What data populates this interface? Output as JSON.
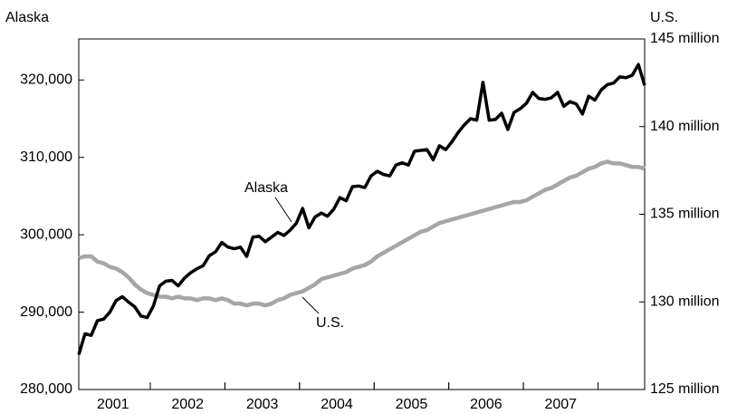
{
  "chart_data": {
    "type": "line",
    "y_label": "Alaska",
    "y2_label": "U.S.",
    "categories": [
      "2001",
      null,
      null,
      null,
      null,
      null,
      null,
      null,
      null,
      null,
      null,
      null,
      "2002",
      null,
      null,
      null,
      null,
      null,
      null,
      null,
      null,
      null,
      null,
      null,
      "2003",
      null,
      null,
      null,
      null,
      null,
      null,
      null,
      null,
      null,
      null,
      null,
      "2004",
      null,
      null,
      null,
      null,
      null,
      null,
      null,
      null,
      null,
      null,
      null,
      "2005",
      null,
      null,
      null,
      null,
      null,
      null,
      null,
      null,
      null,
      null,
      null,
      "2006",
      null,
      null,
      null,
      null,
      null,
      null,
      null,
      null,
      null,
      null,
      null,
      "2007",
      null,
      null,
      null,
      null,
      null,
      null,
      null,
      null,
      null,
      null,
      null,
      null,
      null,
      null,
      null,
      null,
      null,
      null,
      null
    ],
    "series": [
      {
        "name": "Alaska",
        "color": "#000000",
        "values": [
          284500,
          287200,
          287000,
          288900,
          289100,
          290000,
          291500,
          292000,
          291300,
          290700,
          289500,
          289300,
          290800,
          293400,
          294000,
          294100,
          293400,
          294400,
          295100,
          295600,
          296000,
          297300,
          297800,
          299000,
          298400,
          298200,
          298400,
          297200,
          299700,
          299800,
          299100,
          299700,
          300300,
          299900,
          300600,
          301500,
          303400,
          300900,
          302300,
          302800,
          302400,
          303300,
          304800,
          304400,
          306200,
          306300,
          306100,
          307600,
          308200,
          307800,
          307600,
          309000,
          309300,
          309000,
          310800,
          310900,
          311000,
          309700,
          311500,
          311000,
          312000,
          313200,
          314200,
          315000,
          314800,
          319700,
          314800,
          314900,
          315700,
          313600,
          315800,
          316300,
          317000,
          318400,
          317600,
          317500,
          317700,
          318400,
          316600,
          317200,
          316900,
          315600,
          317900,
          317400,
          318700,
          319400,
          319600,
          320400,
          320300,
          320600,
          322000,
          319300
        ]
      },
      {
        "name": "U.S.",
        "color": "#a6a6a6",
        "axis": "y2",
        "values": [
          132.5,
          132.6,
          132.6,
          132.3,
          132.2,
          132.0,
          131.9,
          131.7,
          131.4,
          131.0,
          130.7,
          130.5,
          130.4,
          130.3,
          130.3,
          130.2,
          130.3,
          130.2,
          130.2,
          130.1,
          130.2,
          130.2,
          130.1,
          130.2,
          130.1,
          129.9,
          129.9,
          129.8,
          129.9,
          129.9,
          129.8,
          129.9,
          130.1,
          130.2,
          130.4,
          130.5,
          130.6,
          130.8,
          131.0,
          131.3,
          131.4,
          131.5,
          131.6,
          131.7,
          131.9,
          132.0,
          132.1,
          132.3,
          132.6,
          132.8,
          133.0,
          133.2,
          133.4,
          133.6,
          133.8,
          134.0,
          134.1,
          134.3,
          134.5,
          134.6,
          134.7,
          134.8,
          134.9,
          135.0,
          135.1,
          135.2,
          135.3,
          135.4,
          135.5,
          135.6,
          135.7,
          135.7,
          135.8,
          136.0,
          136.2,
          136.4,
          136.5,
          136.7,
          136.9,
          137.1,
          137.2,
          137.4,
          137.6,
          137.7,
          137.9,
          138.0,
          137.9,
          137.9,
          137.8,
          137.7,
          137.7,
          137.6
        ]
      }
    ],
    "ylim": [
      280000,
      325300
    ],
    "yticks": [
      {
        "value": 280000,
        "label": "280,000"
      },
      {
        "value": 290000,
        "label": "290,000"
      },
      {
        "value": 300000,
        "label": "300,000"
      },
      {
        "value": 310000,
        "label": "310,000"
      },
      {
        "value": 320000,
        "label": "320,000"
      }
    ],
    "y2lim": [
      125,
      145
    ],
    "y2ticks": [
      {
        "value": 125,
        "label": "125 million"
      },
      {
        "value": 130,
        "label": "130 million"
      },
      {
        "value": 135,
        "label": "135 million"
      },
      {
        "value": 140,
        "label": "140 million"
      },
      {
        "value": 145,
        "label": "145 million"
      }
    ],
    "annotations": [
      "Alaska",
      "U.S."
    ]
  }
}
